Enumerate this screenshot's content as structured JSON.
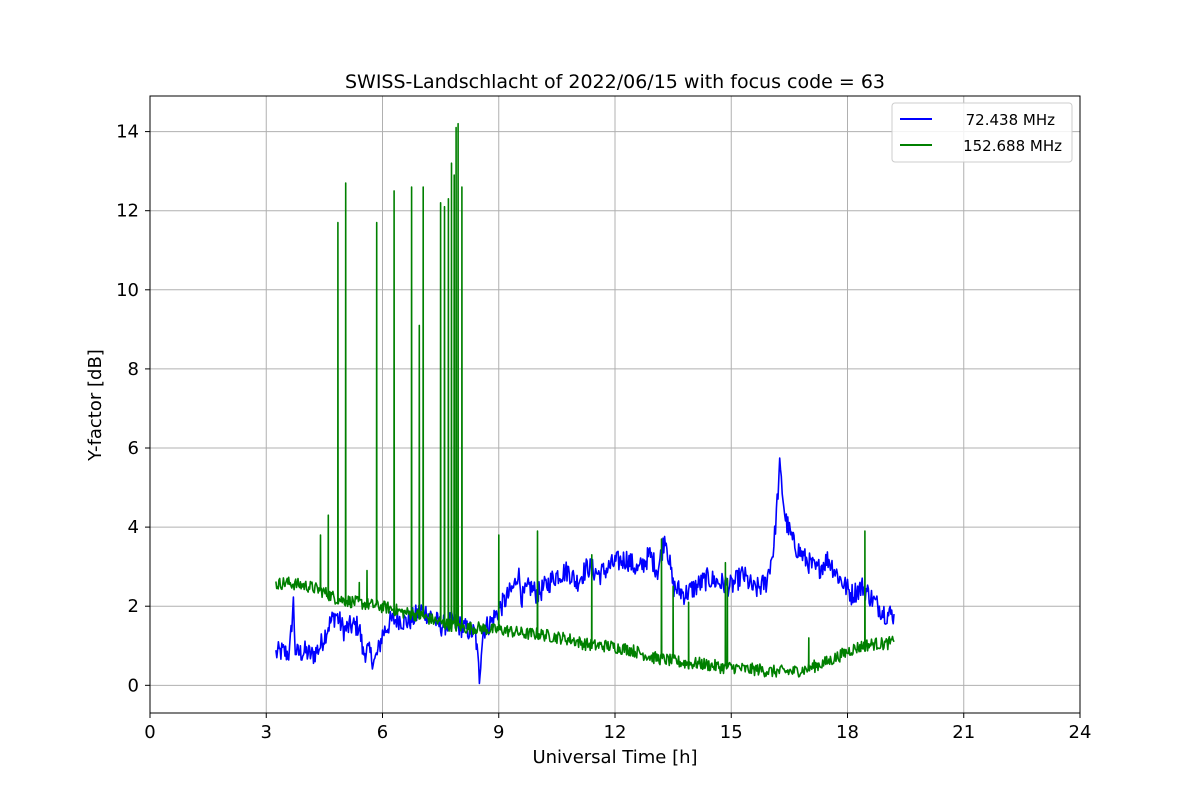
{
  "chart_data": {
    "type": "line",
    "title": "SWISS-Landschlacht of 2022/06/15 with focus code = 63",
    "xlabel": "Universal Time [h]",
    "ylabel": "Y-factor [dB]",
    "xlim": [
      0,
      24
    ],
    "ylim": [
      -0.7,
      14.9
    ],
    "xticks": [
      0,
      3,
      6,
      9,
      12,
      15,
      18,
      21,
      24
    ],
    "yticks": [
      0,
      2,
      4,
      6,
      8,
      10,
      12,
      14
    ],
    "grid": true,
    "legend_position": "top-right",
    "series": [
      {
        "name": "72.438 MHz",
        "color": "#0000ff",
        "x": [
          3.25,
          3.4,
          3.6,
          3.7,
          3.75,
          3.8,
          4.0,
          4.2,
          4.4,
          4.6,
          4.8,
          5.0,
          5.2,
          5.4,
          5.5,
          5.6,
          5.8,
          5.9,
          6.0,
          6.2,
          6.4,
          6.6,
          6.8,
          7.0,
          7.2,
          7.5,
          7.8,
          8.0,
          8.2,
          8.4,
          8.5,
          8.55,
          8.6,
          8.8,
          9.0,
          9.2,
          9.4,
          9.5,
          9.6,
          9.8,
          10.0,
          10.2,
          10.5,
          10.8,
          11.0,
          11.3,
          11.6,
          12.0,
          12.3,
          12.6,
          12.9,
          13.1,
          13.3,
          13.5,
          13.8,
          14.1,
          14.4,
          14.7,
          15.0,
          15.3,
          15.6,
          15.9,
          16.1,
          16.25,
          16.4,
          16.6,
          16.9,
          17.2,
          17.5,
          17.8,
          18.1,
          18.4,
          18.7,
          19.0,
          19.2
        ],
        "values": [
          0.8,
          0.85,
          0.8,
          2.1,
          0.9,
          0.8,
          0.85,
          0.75,
          1.0,
          1.5,
          1.8,
          1.4,
          1.5,
          1.5,
          0.8,
          0.9,
          0.6,
          0.9,
          1.3,
          1.6,
          1.7,
          1.6,
          1.7,
          1.9,
          1.8,
          1.5,
          1.6,
          1.5,
          1.4,
          1.3,
          0.2,
          0.9,
          1.4,
          1.6,
          1.9,
          2.2,
          2.5,
          2.9,
          2.2,
          2.5,
          2.3,
          2.5,
          2.8,
          2.9,
          2.6,
          3.0,
          2.8,
          3.1,
          3.2,
          2.9,
          3.3,
          2.9,
          3.8,
          2.5,
          2.3,
          2.5,
          2.7,
          2.6,
          2.5,
          2.8,
          2.4,
          2.6,
          3.5,
          5.5,
          4.2,
          3.6,
          3.2,
          2.9,
          3.2,
          2.7,
          2.3,
          2.5,
          2.1,
          1.8,
          1.8
        ]
      },
      {
        "name": "152.688 MHz",
        "color": "#008000",
        "x": [
          3.25,
          3.5,
          3.8,
          4.1,
          4.4,
          4.6,
          4.8,
          5.0,
          5.3,
          5.6,
          5.9,
          6.2,
          6.5,
          6.8,
          7.0,
          7.3,
          7.6,
          7.9,
          8.2,
          8.5,
          8.8,
          9.1,
          9.4,
          9.7,
          10.0,
          10.3,
          10.6,
          10.9,
          11.2,
          11.5,
          11.8,
          12.1,
          12.4,
          12.7,
          13.0,
          13.3,
          13.6,
          13.9,
          14.2,
          14.5,
          14.8,
          15.1,
          15.4,
          15.7,
          16.0,
          16.3,
          16.6,
          16.9,
          17.2,
          17.5,
          17.8,
          18.1,
          18.4,
          18.7,
          19.0,
          19.2
        ],
        "values": [
          2.55,
          2.6,
          2.55,
          2.5,
          2.4,
          2.3,
          2.2,
          2.15,
          2.1,
          2.05,
          2.0,
          1.95,
          1.85,
          1.8,
          1.75,
          1.65,
          1.55,
          1.5,
          1.45,
          1.45,
          1.4,
          1.4,
          1.35,
          1.3,
          1.3,
          1.25,
          1.2,
          1.15,
          1.05,
          1.0,
          1.0,
          0.95,
          0.9,
          0.8,
          0.7,
          0.65,
          0.6,
          0.55,
          0.55,
          0.5,
          0.45,
          0.45,
          0.4,
          0.4,
          0.35,
          0.35,
          0.35,
          0.4,
          0.5,
          0.6,
          0.75,
          0.9,
          1.0,
          1.05,
          1.05,
          1.1
        ],
        "spikes": [
          [
            4.4,
            3.8
          ],
          [
            4.6,
            4.3
          ],
          [
            4.85,
            11.7
          ],
          [
            5.05,
            12.7
          ],
          [
            5.4,
            2.6
          ],
          [
            5.6,
            2.9
          ],
          [
            5.85,
            11.7
          ],
          [
            6.3,
            12.5
          ],
          [
            6.75,
            12.6
          ],
          [
            6.95,
            9.1
          ],
          [
            7.05,
            12.6
          ],
          [
            7.5,
            12.2
          ],
          [
            7.6,
            12.1
          ],
          [
            7.7,
            12.3
          ],
          [
            7.78,
            13.2
          ],
          [
            7.85,
            12.9
          ],
          [
            7.9,
            14.1
          ],
          [
            7.95,
            14.2
          ],
          [
            8.05,
            12.6
          ],
          [
            9.0,
            3.8
          ],
          [
            10.0,
            3.9
          ],
          [
            11.4,
            3.3
          ],
          [
            13.2,
            3.7
          ],
          [
            13.5,
            2.5
          ],
          [
            13.9,
            2.1
          ],
          [
            14.85,
            3.1
          ],
          [
            14.9,
            2.7
          ],
          [
            17.0,
            1.2
          ],
          [
            18.45,
            3.9
          ]
        ]
      }
    ]
  }
}
